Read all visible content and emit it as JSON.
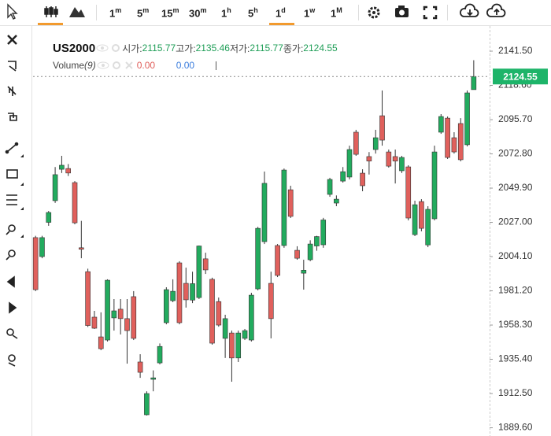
{
  "toolbar": {
    "timeframes": [
      {
        "n": "1",
        "u": "m"
      },
      {
        "n": "5",
        "u": "m"
      },
      {
        "n": "15",
        "u": "m"
      },
      {
        "n": "30",
        "u": "m"
      },
      {
        "n": "1",
        "u": "h"
      },
      {
        "n": "5",
        "u": "h"
      },
      {
        "n": "1",
        "u": "d"
      },
      {
        "n": "1",
        "u": "w"
      },
      {
        "n": "1",
        "u": "M"
      }
    ],
    "active": 6
  },
  "legend": {
    "symbol": "US2000",
    "ohlc_labels": [
      "시가:",
      "고가:",
      "저가:",
      "종가:"
    ],
    "volume_label": "Volume",
    "volume_period": "(9)",
    "volume_values": [
      "0.00",
      "0.00"
    ]
  },
  "chart_data": {
    "type": "candlestick",
    "up_color": "#22ab5e",
    "down_color": "#e0605c",
    "open": [
      2016.8,
      2004.1,
      2027,
      2041.5,
      2062.5,
      2063,
      2053.6,
      2010,
      1994,
      1963.6,
      1950.4,
      1948.3,
      1963.1,
      1968.9,
      1962.6,
      1977.3,
      1933.6,
      1898.3,
      1922,
      1933,
      1959.9,
      1974.6,
      1999.9,
      1986.2,
      1975,
      1976.7,
      2002.6,
      1988.9,
      1974,
      1949.4,
      1953,
      1936.3,
      1949.4,
      1948.3,
      1982.5,
      2014.1,
      1986.2,
      2011.5,
      2011.5,
      2048.8,
      2008.3,
      1993,
      2002,
      2011.2,
      2012,
      2045.7,
      2039.9,
      2054.6,
      2057.3,
      2087.3,
      2059.9,
      2071,
      2075.7,
      2098.3,
      2074.1,
      2071,
      2061.5,
      2064.1,
      2018.8,
      2040.9,
      2011.9,
      2029.4,
      2087.3,
      2096.7,
      2083.6,
      2093.1,
      2078.9,
      2115.77
    ],
    "high": [
      2018,
      2018,
      2034.6,
      2064,
      2071.5,
      2066,
      2054.6,
      2028,
      1996,
      1967.8,
      1966.8,
      1988.9,
      1975.7,
      1975.7,
      1975.7,
      1981,
      1938.8,
      1914,
      1928,
      1946,
      1983.6,
      1988.9,
      2001,
      1996.7,
      1994,
      2011.5,
      2006.7,
      1990,
      1976.7,
      1965.2,
      1954.6,
      1954.6,
      1955.7,
      1979.9,
      2024,
      2061,
      1994,
      2012.5,
      2063,
      2051.5,
      2011,
      2002,
      2015,
      2018,
      2030,
      2056.8,
      2045,
      2064,
      2078.3,
      2088.9,
      2062.5,
      2074,
      2088.9,
      2115.2,
      2075.7,
      2075.7,
      2071.5,
      2065.2,
      2041.5,
      2042.5,
      2037.8,
      2078.3,
      2099.4,
      2097.8,
      2087.3,
      2096.7,
      2115.2,
      2135.46
    ],
    "low": [
      1981,
      2003,
      2024.7,
      2040,
      2060,
      2058,
      2025.7,
      2003,
      1957,
      1955.7,
      1941.5,
      1947.3,
      1954.6,
      1952,
      1932.5,
      1948.3,
      1923,
      1897.8,
      1914,
      1932,
      1958.8,
      1973.6,
      1958.8,
      1970,
      1973,
      1975.7,
      1992.5,
      1945.2,
      1957.2,
      1936.3,
      1920.4,
      1933.6,
      1948.3,
      1947.3,
      1981.5,
      2012.5,
      1949.4,
      1990.4,
      2010,
      2029.9,
      2002,
      1982,
      2001,
      2008,
      2010,
      2044.1,
      2037.8,
      2053.6,
      2055.7,
      2071.5,
      2047.8,
      2059,
      2073,
      2078.3,
      2063.6,
      2053,
      2060,
      2028.3,
      2017.8,
      2021,
      2010.4,
      2028.3,
      2086.2,
      2069.4,
      2073,
      2067.8,
      2077.8,
      2115.77
    ],
    "close": [
      1982,
      2016.8,
      2033.6,
      2058.9,
      2065.2,
      2060,
      2026.7,
      2009,
      1958,
      1956.2,
      1942.5,
      1988.3,
      1967.8,
      1962.6,
      1954.6,
      1949.4,
      1926.7,
      1912.5,
      1923,
      1944,
      1982,
      1980.9,
      1959.9,
      1975.2,
      1986,
      2011.2,
      1995.2,
      1946.2,
      1958.3,
      1962.6,
      1936.3,
      1953,
      1954.6,
      1978.3,
      2023,
      2053.1,
      1962.6,
      1991.5,
      2062,
      2031,
      2003,
      1995,
      2012.5,
      2017.5,
      2028.6,
      2055.7,
      2042.5,
      2060.9,
      2075.7,
      2072.5,
      2051.5,
      2068,
      2083.6,
      2082,
      2064.6,
      2068,
      2070.4,
      2029.9,
      2038.8,
      2023,
      2035.7,
      2074.1,
      2097.8,
      2070.4,
      2074.1,
      2068.9,
      2113.6,
      2124.55
    ],
    "ylim": [
      1884.1,
      2157.3
    ],
    "yticks": [
      {
        "value": 2141.5,
        "label": "2141.50"
      },
      {
        "value": 2118.6,
        "label": "2118.60"
      },
      {
        "value": 2095.7,
        "label": "2095.70"
      },
      {
        "value": 2072.8,
        "label": "2072.80"
      },
      {
        "value": 2049.9,
        "label": "2049.90"
      },
      {
        "value": 2027,
        "label": "2027.00"
      },
      {
        "value": 2004.1,
        "label": "2004.10"
      },
      {
        "value": 1981.2,
        "label": "1981.20"
      },
      {
        "value": 1958.3,
        "label": "1958.30"
      },
      {
        "value": 1935.4,
        "label": "1935.40"
      },
      {
        "value": 1912.5,
        "label": "1912.50"
      },
      {
        "value": 1889.6,
        "label": "1889.60"
      }
    ],
    "price_label_color": "#1db469"
  }
}
